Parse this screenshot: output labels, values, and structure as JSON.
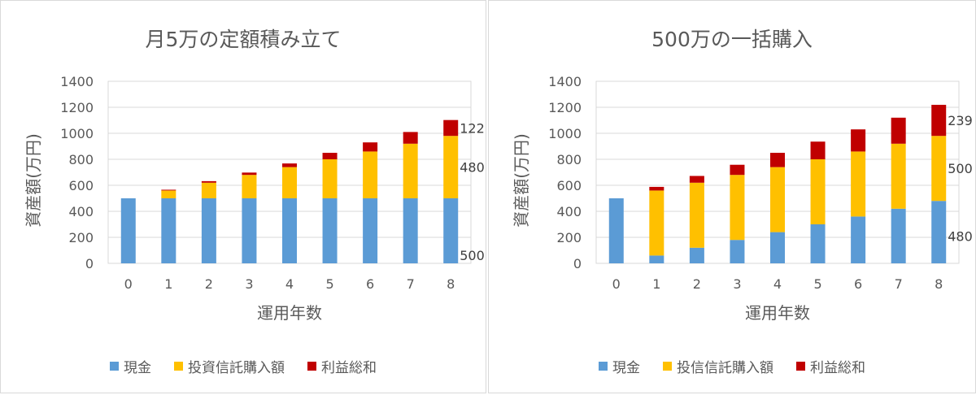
{
  "colors": {
    "cash": "#5B9BD5",
    "invest": "#FFC000",
    "profit": "#C00000",
    "grid": "#d9d9d9",
    "axis": "#bfbfbf",
    "text": "#595959"
  },
  "chart_data": [
    {
      "type": "bar",
      "stacked": true,
      "title": "月5万の定額積み立て",
      "xlabel": "運用年数",
      "ylabel": "資産額(万円)",
      "ylim": [
        0,
        1400
      ],
      "yticks": [
        0,
        200,
        400,
        600,
        800,
        1000,
        1200,
        1400
      ],
      "categories": [
        "0",
        "1",
        "2",
        "3",
        "4",
        "5",
        "6",
        "7",
        "8"
      ],
      "grid": true,
      "legend_position": "bottom",
      "series": [
        {
          "name": "現金",
          "values": [
            500,
            500,
            500,
            500,
            500,
            500,
            500,
            500,
            500
          ]
        },
        {
          "name": "投資信託購入額",
          "values": [
            0,
            60,
            120,
            180,
            240,
            300,
            360,
            420,
            480
          ]
        },
        {
          "name": "利益総和",
          "values": [
            0,
            6,
            12,
            18,
            28,
            50,
            70,
            90,
            122
          ]
        }
      ],
      "annotations": [
        "122",
        "480",
        "500"
      ]
    },
    {
      "type": "bar",
      "stacked": true,
      "title": "500万の一括購入",
      "xlabel": "運用年数",
      "ylabel": "資産額(万円)",
      "ylim": [
        0,
        1400
      ],
      "yticks": [
        0,
        200,
        400,
        600,
        800,
        1000,
        1200,
        1400
      ],
      "categories": [
        "0",
        "1",
        "2",
        "3",
        "4",
        "5",
        "6",
        "7",
        "8"
      ],
      "grid": true,
      "legend_position": "bottom",
      "series": [
        {
          "name": "現金",
          "values": [
            500,
            60,
            120,
            180,
            240,
            300,
            360,
            420,
            480
          ]
        },
        {
          "name": "投信信託購入額",
          "values": [
            0,
            500,
            500,
            500,
            500,
            500,
            500,
            500,
            500
          ]
        },
        {
          "name": "利益総和",
          "values": [
            0,
            28,
            52,
            78,
            110,
            136,
            170,
            200,
            239
          ]
        }
      ],
      "annotations": [
        "239",
        "500",
        "480"
      ]
    }
  ]
}
